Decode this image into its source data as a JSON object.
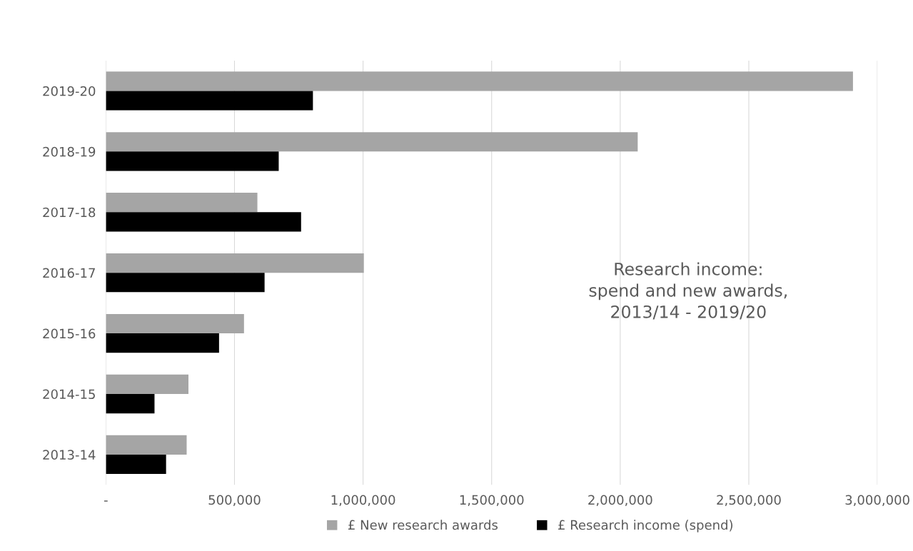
{
  "chart_data": {
    "type": "bar",
    "orientation": "horizontal",
    "title": "Research income:\nspend and new awards,\n2013/14 - 2019/20",
    "categories": [
      "2019-20",
      "2018-19",
      "2017-18",
      "2016-17",
      "2015-16",
      "2014-15",
      "2013-14"
    ],
    "series": [
      {
        "name": "£ New research awards",
        "color": "#a5a5a5",
        "values": [
          2905000,
          2068000,
          589000,
          1003000,
          537000,
          321000,
          314000
        ]
      },
      {
        "name": "£ Research income (spend)",
        "color": "#000000",
        "values": [
          805000,
          672000,
          759000,
          617000,
          440000,
          189000,
          234000
        ]
      }
    ],
    "xlim": [
      0,
      3000000
    ],
    "xticks": [
      {
        "value": 0,
        "label": "-"
      },
      {
        "value": 500000,
        "label": "500,000"
      },
      {
        "value": 1000000,
        "label": "1,000,000"
      },
      {
        "value": 1500000,
        "label": "1,500,000"
      },
      {
        "value": 2000000,
        "label": "2,000,000"
      },
      {
        "value": 2500000,
        "label": "2,500,000"
      },
      {
        "value": 3000000,
        "label": "3,000,000"
      }
    ],
    "grid": "x",
    "legend": "bottom"
  }
}
